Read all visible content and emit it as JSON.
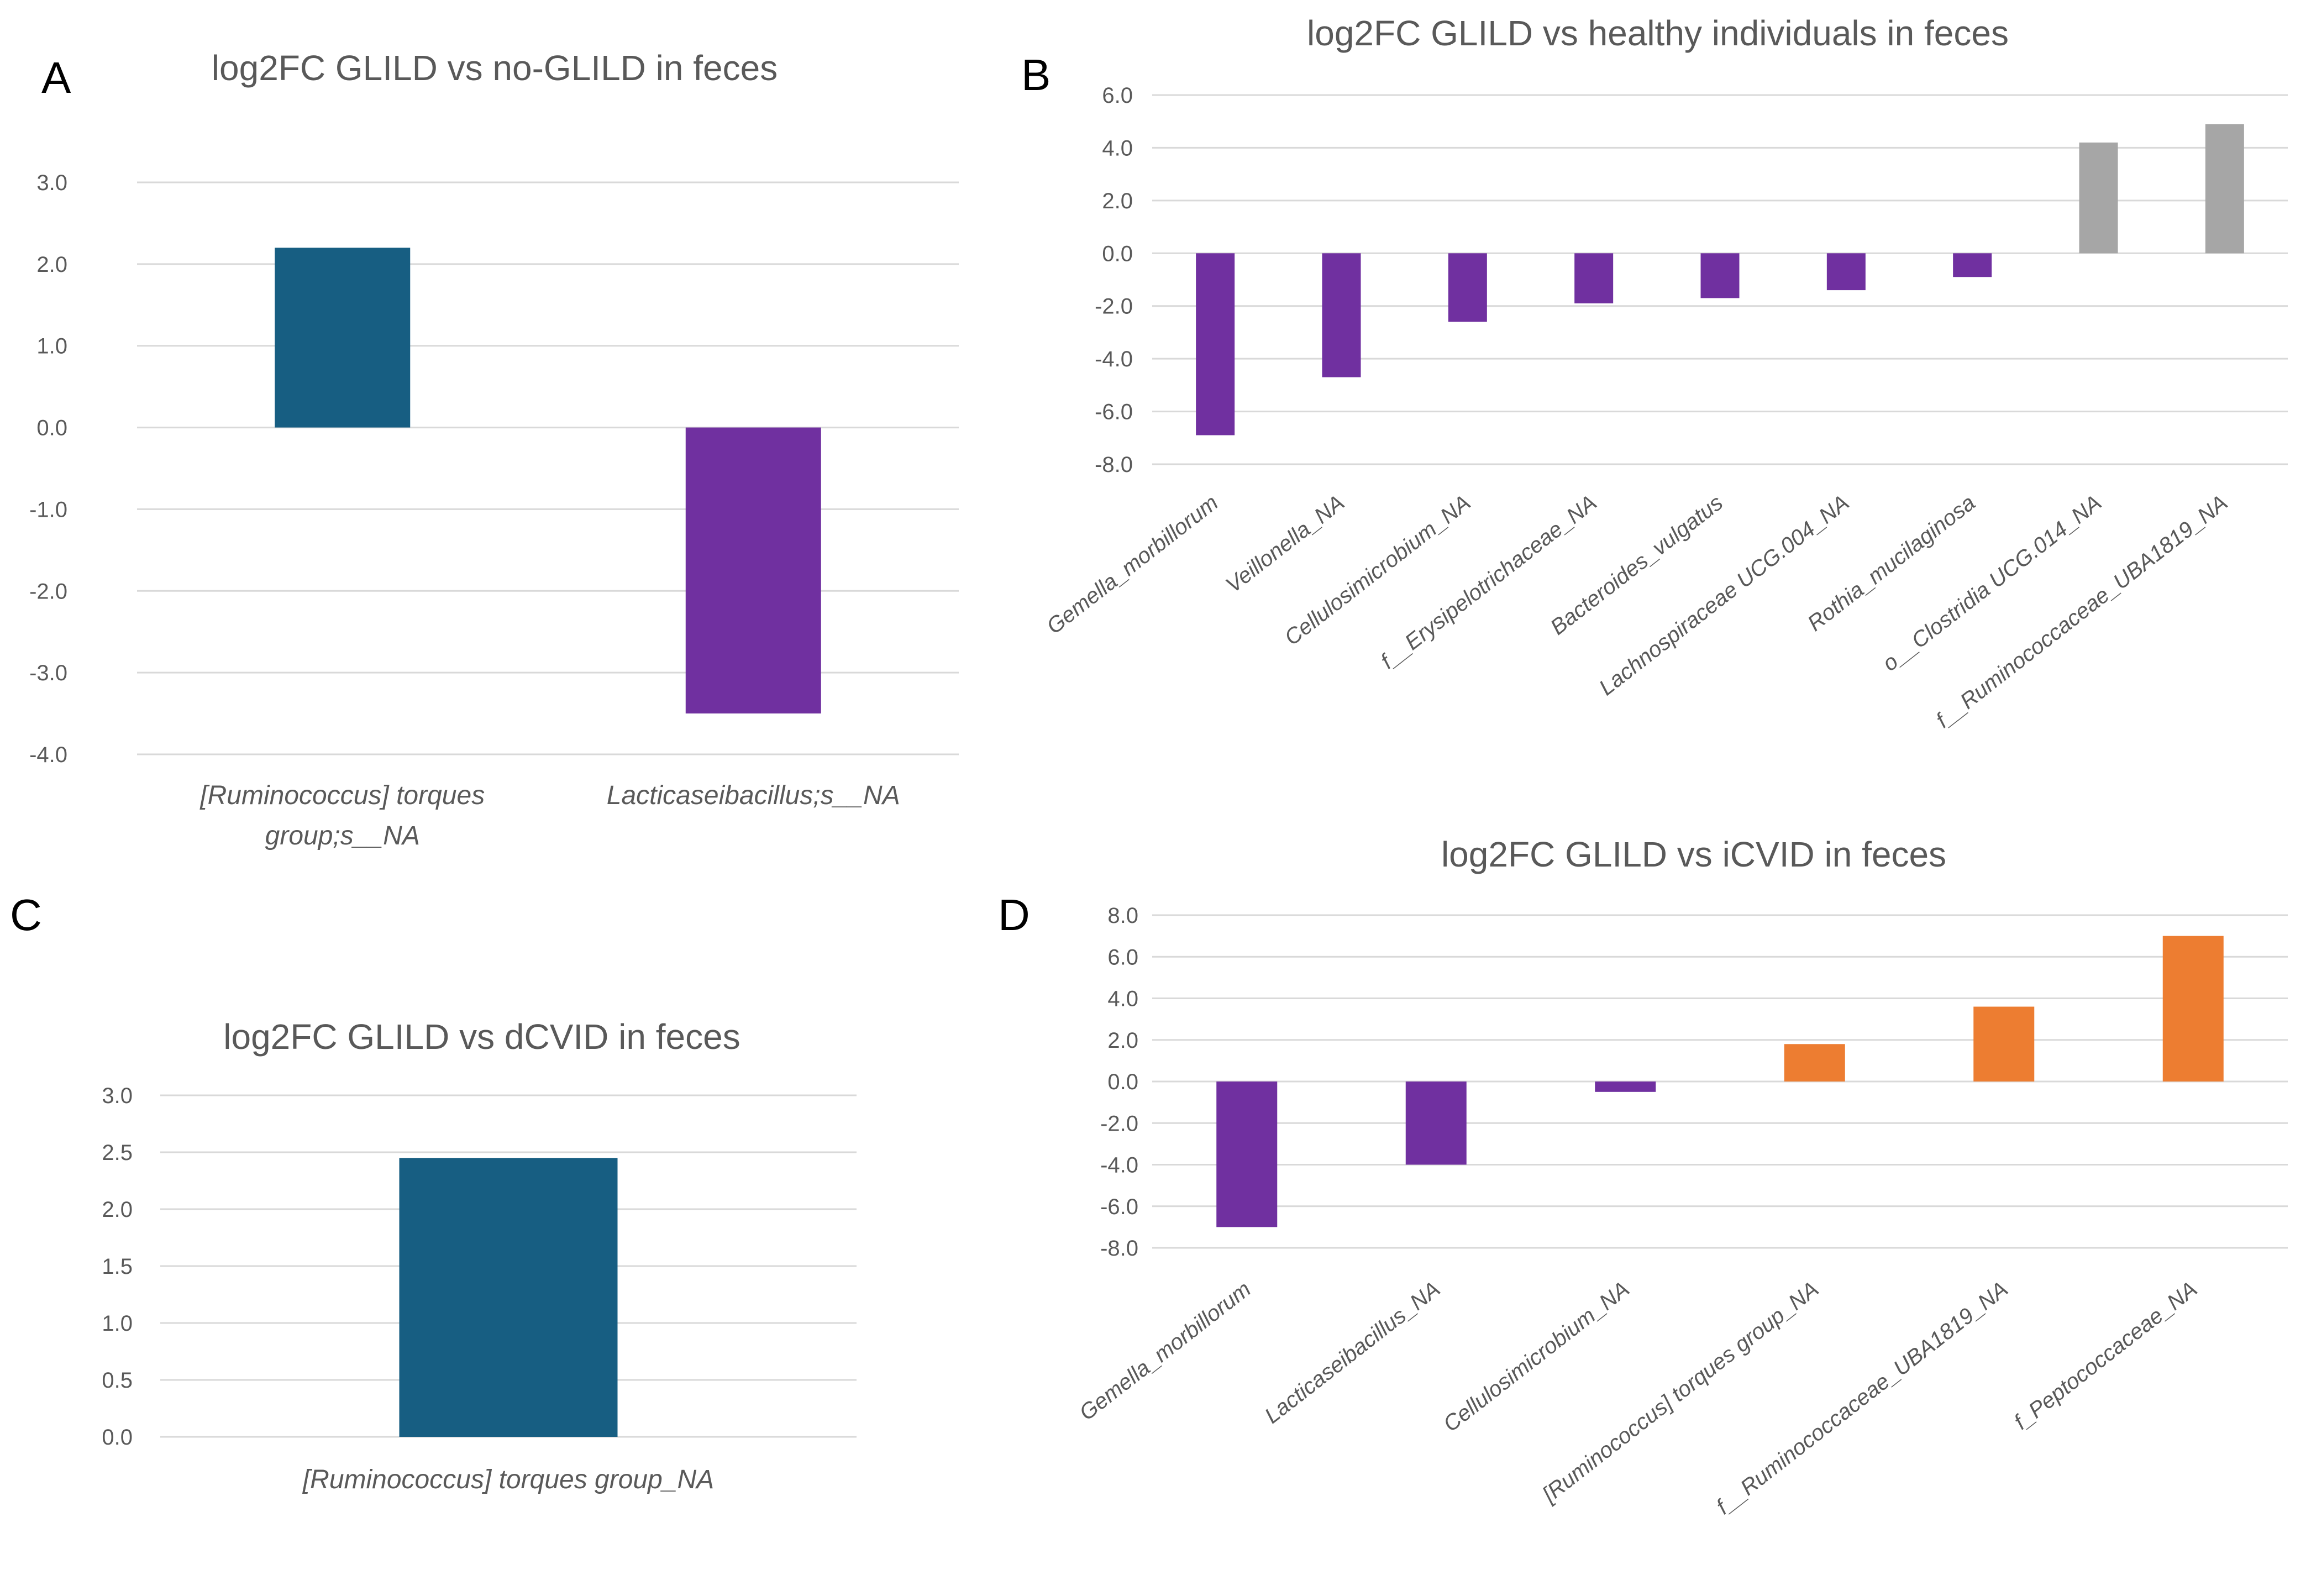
{
  "colors": {
    "teal": "#175e82",
    "purple": "#7030a0",
    "gray": "#a6a6a6",
    "orange": "#ed7d31",
    "grid": "#d9d9d9",
    "text": "#595959"
  },
  "chart_data": [
    {
      "id": "A",
      "panel_label": "A",
      "type": "bar",
      "title": "log2FC GLILD vs no-GLILD in feces",
      "categories": [
        "[Ruminococcus] torques group;s__NA",
        "Lacticaseibacillus;s__NA"
      ],
      "category_lines": [
        [
          "[Ruminococcus] torques",
          "group;s__NA"
        ],
        [
          "Lacticaseibacillus;s__NA"
        ]
      ],
      "values": [
        2.2,
        -3.5
      ],
      "bar_colors": [
        "#175e82",
        "#7030a0"
      ],
      "ylim": [
        -4,
        3
      ],
      "yticks": [
        3.0,
        2.0,
        1.0,
        0.0,
        -1.0,
        -2.0,
        -3.0,
        -4.0
      ],
      "ytick_labels": [
        "3.0",
        "2.0",
        "1.0",
        "0.0",
        "-1.0",
        "-2.0",
        "-3.0",
        "-4.0"
      ],
      "xlabel": "",
      "ylabel": "",
      "grid": true
    },
    {
      "id": "B",
      "panel_label": "B",
      "type": "bar",
      "title": "log2FC GLILD vs healthy individuals in feces",
      "categories": [
        "Gemella_morbillorum",
        "Veillonella_NA",
        "Cellulosimicrobium_NA",
        "f__Erysipelotrichaceae_NA",
        "Bacteroides_vulgatus",
        "Lachnospiraceae UCG.004_NA",
        "Rothia_mucilaginosa",
        "o__Clostridia UCG.014_NA",
        "f__Ruminococcaceae_UBA1819_NA"
      ],
      "values": [
        -6.9,
        -4.7,
        -2.6,
        -1.9,
        -1.7,
        -1.4,
        -0.9,
        4.2,
        4.9
      ],
      "bar_colors": [
        "#7030a0",
        "#7030a0",
        "#7030a0",
        "#7030a0",
        "#7030a0",
        "#7030a0",
        "#7030a0",
        "#a6a6a6",
        "#a6a6a6"
      ],
      "ylim": [
        -8,
        6
      ],
      "yticks": [
        6.0,
        4.0,
        2.0,
        0.0,
        -2.0,
        -4.0,
        -6.0,
        -8.0
      ],
      "ytick_labels": [
        "6.0",
        "4.0",
        "2.0",
        "0.0",
        "-2.0",
        "-4.0",
        "-6.0",
        "-8.0"
      ],
      "xlabel": "",
      "ylabel": "",
      "grid": true
    },
    {
      "id": "C",
      "panel_label": "C",
      "type": "bar",
      "title": "log2FC GLILD vs dCVID in feces",
      "categories": [
        "[Ruminococcus] torques group_NA"
      ],
      "values": [
        2.45
      ],
      "bar_colors": [
        "#175e82"
      ],
      "ylim": [
        0,
        3
      ],
      "yticks": [
        3.0,
        2.5,
        2.0,
        1.5,
        1.0,
        0.5,
        0.0
      ],
      "ytick_labels": [
        "3.0",
        "2.5",
        "2.0",
        "1.5",
        "1.0",
        "0.5",
        "0.0"
      ],
      "xlabel": "",
      "ylabel": "",
      "grid": true
    },
    {
      "id": "D",
      "panel_label": "D",
      "type": "bar",
      "title": "log2FC GLILD vs iCVID in feces",
      "categories": [
        "Gemella_morbillorum",
        "Lacticaseibacillus_NA",
        "Cellulosimicrobium_NA",
        "[Ruminococcus] torques group_NA",
        "f__Ruminococcaceae_UBA1819_NA",
        "f_Peptococcaceae_NA"
      ],
      "values": [
        -7.0,
        -4.0,
        -0.5,
        1.8,
        3.6,
        7.0
      ],
      "bar_colors": [
        "#7030a0",
        "#7030a0",
        "#7030a0",
        "#ed7d31",
        "#ed7d31",
        "#ed7d31"
      ],
      "ylim": [
        -8,
        8
      ],
      "yticks": [
        8.0,
        6.0,
        4.0,
        2.0,
        0.0,
        -2.0,
        -4.0,
        -6.0,
        -8.0
      ],
      "ytick_labels": [
        "8.0",
        "6.0",
        "4.0",
        "2.0",
        "0.0",
        "-2.0",
        "-4.0",
        "-6.0",
        "-8.0"
      ],
      "xlabel": "",
      "ylabel": "",
      "grid": true
    }
  ]
}
